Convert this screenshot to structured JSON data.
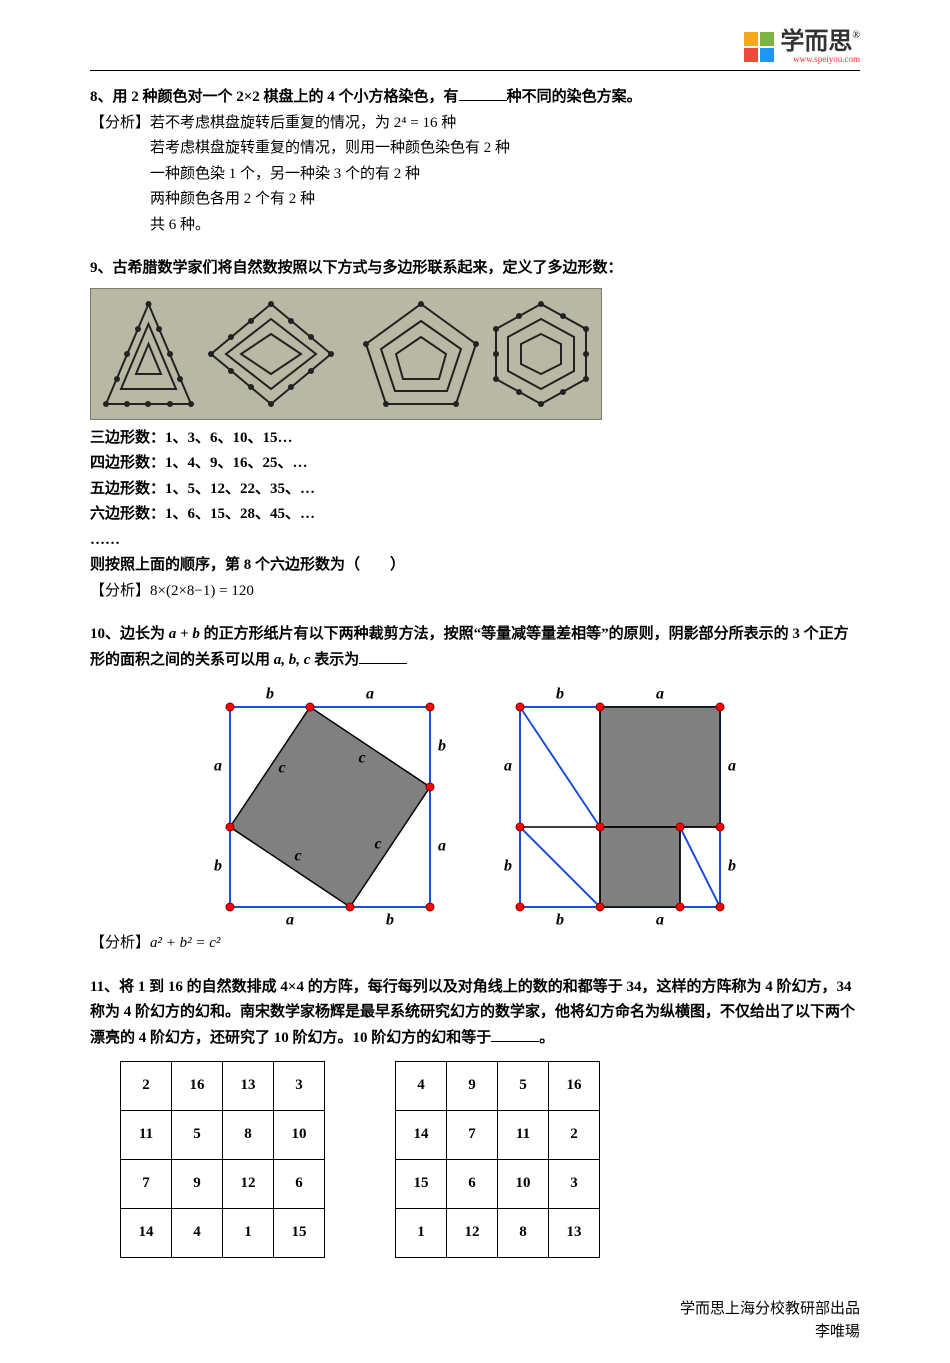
{
  "logo": {
    "text": "学而思",
    "url": "www.speiyou.com",
    "colors": [
      "#f5a623",
      "#7cb342",
      "#e74c3c",
      "#2196f3"
    ],
    "reg": "®"
  },
  "q8": {
    "prompt_pre": "8、用 2 种颜色对一个 2×2 棋盘上的 4 个小方格染色，有",
    "prompt_post": "种不同的染色方案。",
    "analysis_label": "【分析】",
    "line1": "若不考虑棋盘旋转后重复的情况，为 2⁴ = 16 种",
    "line2": "若考虑棋盘旋转重复的情况，则用一种颜色染色有 2 种",
    "line3": "一种颜色染 1 个，另一种染 3 个的有 2 种",
    "line4": "两种颜色各用 2 个有 2 种",
    "line5": "共 6 种。"
  },
  "q9": {
    "prompt": "9、古希腊数学家们将自然数按照以下方式与多边形联系起来，定义了多边形数：",
    "triangles": "三边形数：1、3、6、10、15…",
    "squares": "四边形数：1、4、9、16、25、…",
    "pentagons": "五边形数：1、5、12、22、35、…",
    "hexagons": "六边形数：1、6、15、28、45、…",
    "ellipsis": "……",
    "question": "则按照上面的顺序，第 8 个六边形数为（　　）",
    "analysis_label": "【分析】",
    "analysis_expr": "8×(2×8−1) = 120"
  },
  "q10": {
    "prompt_pre": "10、边长为 ",
    "var_ab": "a + b",
    "prompt_mid": " 的正方形纸片有以下两种裁剪方法，按照“等量减等量差相等”的原则，阴影部分所表示的 3 个正方形的面积之间的关系可以用 ",
    "var_abc": "a, b, c",
    "prompt_post": " 表示为",
    "analysis_label": "【分析】",
    "analysis_expr": "a² + b² = c²",
    "fig": {
      "side": 200,
      "a": 120,
      "b": 80,
      "outline_color": "#1e50d6",
      "fill_gray": "#808080",
      "fill_white": "#ffffff",
      "line_color": "#1e50d6",
      "inner_line_color": "#000000",
      "vertex_fill": "#ff0000",
      "vertex_stroke": "#7a0000",
      "vertex_r": 4,
      "label_font": "italic 16px 'Times New Roman', serif"
    }
  },
  "q11": {
    "prompt_pre": "11、将 1 到 16 的自然数排成 4×4 的方阵，每行每列以及对角线上的数的和都等于 34，这样的方阵称为 4 阶幻方，34 称为 4 阶幻方的幻和。南宋数学家杨辉是最早系统研究幻方的数学家，他将幻方命名为纵横图，不仅给出了以下两个漂亮的 4 阶幻方，还研究了 10 阶幻方。10 阶幻方的幻和等于",
    "prompt_post": "。",
    "square1": [
      [
        2,
        16,
        13,
        3
      ],
      [
        11,
        5,
        8,
        10
      ],
      [
        7,
        9,
        12,
        6
      ],
      [
        14,
        4,
        1,
        15
      ]
    ],
    "square2": [
      [
        4,
        9,
        5,
        16
      ],
      [
        14,
        7,
        11,
        2
      ],
      [
        15,
        6,
        10,
        3
      ],
      [
        1,
        12,
        8,
        13
      ]
    ]
  },
  "footer": {
    "l1": "学而思上海分校教研部出品",
    "l2": "李唯瑒"
  }
}
